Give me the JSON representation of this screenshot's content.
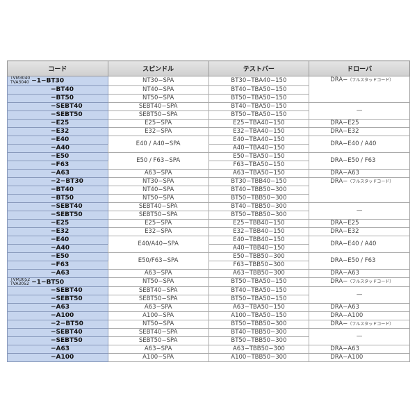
{
  "headers": [
    "コード",
    "スピンドル",
    "テストバー",
    "ドローバ"
  ],
  "rows": [
    {
      "prefix": [
        "TVM3040",
        "TVA3040"
      ],
      "code": "−1−BT30",
      "spindle": "NT30−SPA",
      "testbar": "BT30−TBA40−150",
      "drawbar": "DRA−",
      "drawbar_note": "（フルスタッドコード）"
    },
    {
      "code": "−BT40",
      "spindle": "NT40−SPA",
      "testbar": "BT40−TBA50−150",
      "drawbar": null
    },
    {
      "code": "−BT50",
      "spindle": "NT50−SPA",
      "testbar": "BT50−TBA50−150",
      "drawbar": null
    },
    {
      "code": "−SEBT40",
      "spindle": "SEBT40−SPA",
      "testbar": "BT40−TBA50−150",
      "drawbar": "—"
    },
    {
      "code": "−SEBT50",
      "spindle": "SEBT50−SPA",
      "testbar": "BT50−TBA50−150",
      "drawbar": null
    },
    {
      "code": "−E25",
      "spindle": "E25−SPA",
      "testbar": "E25−TBA40−150",
      "drawbar": "DRA−E25"
    },
    {
      "code": "−E32",
      "spindle": "E32−SPA",
      "testbar": "E32−TBA40−150",
      "drawbar": "DRA−E32"
    },
    {
      "code": "−E40",
      "spindle": "E40 / A40−SPA",
      "testbar": "E40−TBA40−150",
      "drawbar": "DRA−E40 / A40"
    },
    {
      "code": "−A40",
      "spindle": null,
      "testbar": "A40−TBA40−150",
      "drawbar": null
    },
    {
      "code": "−E50",
      "spindle": "E50 / F63−SPA",
      "testbar": "E50−TBA50−150",
      "drawbar": "DRA−E50 / F63"
    },
    {
      "code": "−F63",
      "spindle": null,
      "testbar": "F63−TBA50−150",
      "drawbar": null
    },
    {
      "code": "−A63",
      "spindle": "A63−SPA",
      "testbar": "A63−TBA50−150",
      "drawbar": "DRA−A63"
    },
    {
      "code": "−2−BT30",
      "spindle": "NT30−SPA",
      "testbar": "BT30−TBB40−150",
      "drawbar": "DRA−",
      "drawbar_note": "（フルスタッドコード）"
    },
    {
      "code": "−BT40",
      "spindle": "NT40−SPA",
      "testbar": "BT40−TBB50−300",
      "drawbar": null
    },
    {
      "code": "−BT50",
      "spindle": "NT50−SPA",
      "testbar": "BT50−TBB50−300",
      "drawbar": null
    },
    {
      "code": "−SEBT40",
      "spindle": "SEBT40−SPA",
      "testbar": "BT40−TBB50−300",
      "drawbar": "—"
    },
    {
      "code": "−SEBT50",
      "spindle": "SEBT50−SPA",
      "testbar": "BT50−TBB50−300",
      "drawbar": null
    },
    {
      "code": "−E25",
      "spindle": "E25−SPA",
      "testbar": "E25−TBB40−150",
      "drawbar": "DRA−E25"
    },
    {
      "code": "−E32",
      "spindle": "E32−SPA",
      "testbar": "E32−TBB40−150",
      "drawbar": "DRA−E32"
    },
    {
      "code": "−E40",
      "spindle": "E40/A40−SPA",
      "testbar": "E40−TBB40−150",
      "drawbar": "DRA−E40 / A40"
    },
    {
      "code": "−A40",
      "spindle": null,
      "testbar": "A40−TBB40−150",
      "drawbar": null
    },
    {
      "code": "−E50",
      "spindle": "E50/F63−SPA",
      "testbar": "E50−TBB50−300",
      "drawbar": "DRA−E50 / F63"
    },
    {
      "code": "−F63",
      "spindle": null,
      "testbar": "F63−TBB50−300",
      "drawbar": null
    },
    {
      "code": "−A63",
      "spindle": "A63−SPA",
      "testbar": "A63−TBB50−300",
      "drawbar": "DRA−A63"
    },
    {
      "prefix": [
        "TVM3052",
        "TVA3052"
      ],
      "code": "−1−BT50",
      "spindle": "NT50−SPA",
      "testbar": "BT50−TBA50−150",
      "drawbar": "DRA−",
      "drawbar_note": "（フルスタッドコード）"
    },
    {
      "code": "−SEBT40",
      "spindle": "SEBT40−SPA",
      "testbar": "BT40−TBA50−150",
      "drawbar": "—"
    },
    {
      "code": "−SEBT50",
      "spindle": "SEBT50−SPA",
      "testbar": "BT50−TBA50−150",
      "drawbar": null
    },
    {
      "code": "−A63",
      "spindle": "A63−SPA",
      "testbar": "A63−TBA50−150",
      "drawbar": "DRA−A63"
    },
    {
      "code": "−A100",
      "spindle": "A100−SPA",
      "testbar": "A100−TBA50−150",
      "drawbar": "DRA−A100"
    },
    {
      "code": "−2−BT50",
      "spindle": "NT50−SPA",
      "testbar": "BT50−TBB50−300",
      "drawbar": "DRA−",
      "drawbar_note": "（フルスタッドコード）"
    },
    {
      "code": "−SEBT40",
      "spindle": "SEBT40−SPA",
      "testbar": "BT40−TBB50−300",
      "drawbar": "—"
    },
    {
      "code": "−SEBT50",
      "spindle": "SEBT50−SPA",
      "testbar": "BT50−TBB50−300",
      "drawbar": null
    },
    {
      "code": "−A63",
      "spindle": "A63−SPA",
      "testbar": "A63−TBB50−300",
      "drawbar": "DRA−A63"
    },
    {
      "code": "−A100",
      "spindle": "A100−SPA",
      "testbar": "A100−TBB50−300",
      "drawbar": "DRA−A100"
    }
  ]
}
